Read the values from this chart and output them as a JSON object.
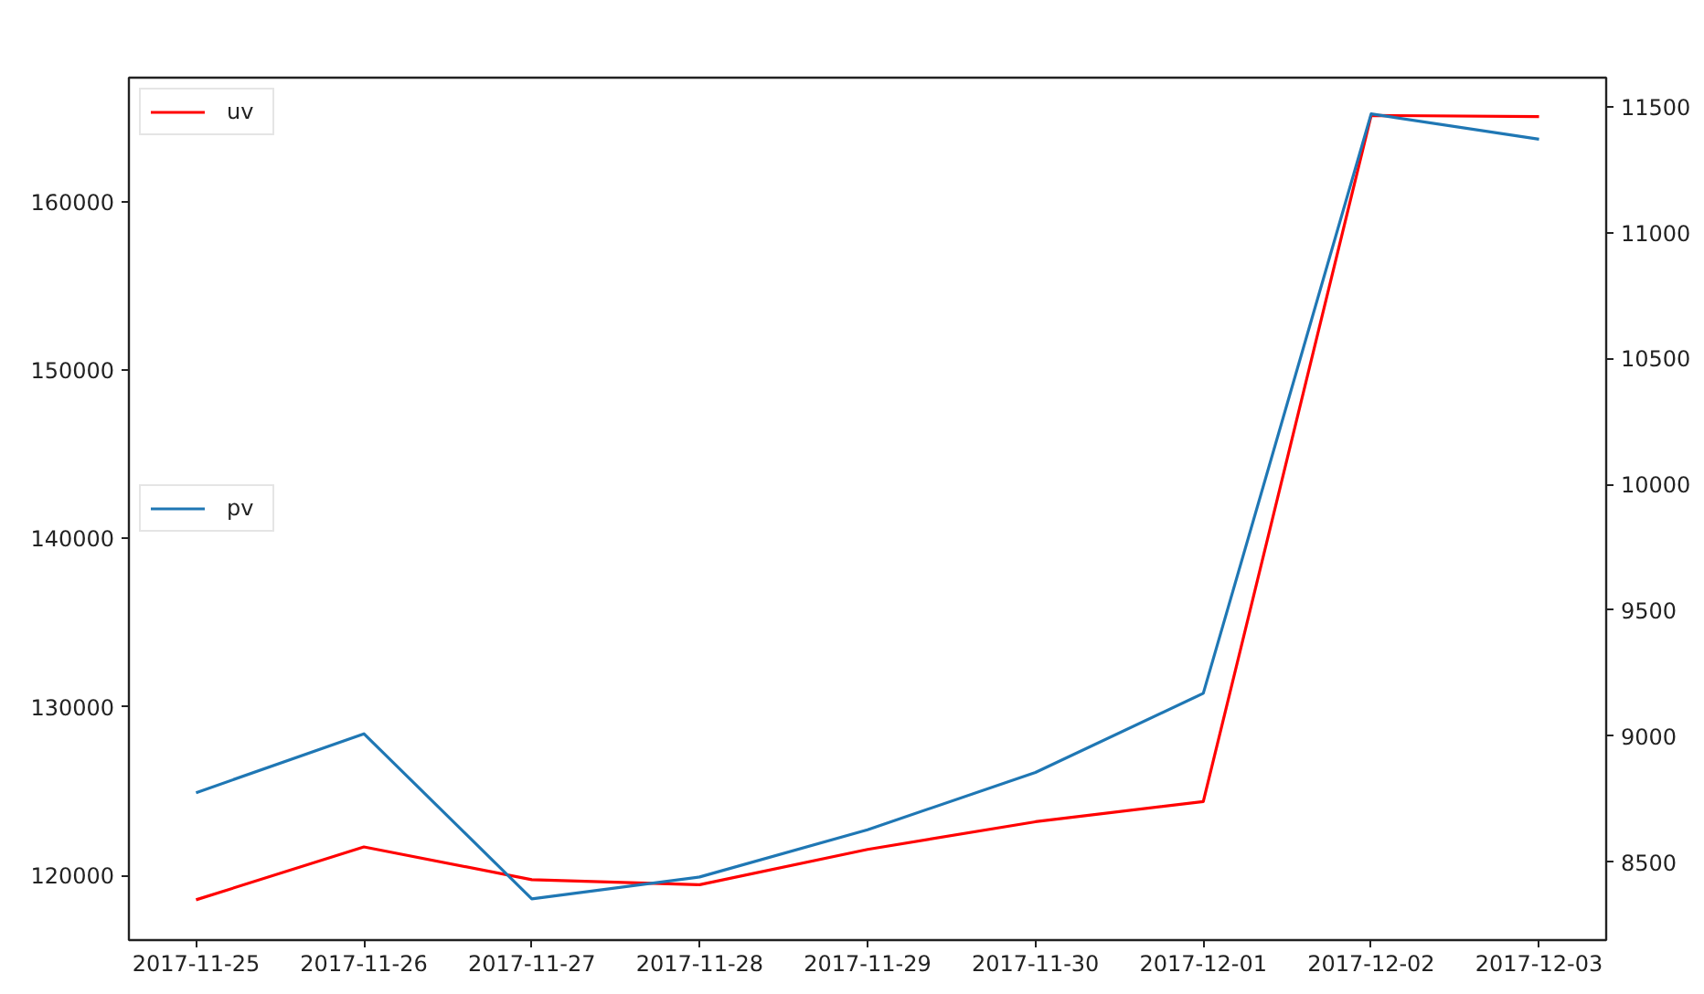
{
  "chart_data": {
    "type": "line",
    "categories": [
      "2017-11-25",
      "2017-11-26",
      "2017-11-27",
      "2017-11-28",
      "2017-11-29",
      "2017-11-30",
      "2017-12-01",
      "2017-12-02",
      "2017-12-03"
    ],
    "series": [
      {
        "name": "uv",
        "color": "#ff0000",
        "axis": "y2",
        "values": [
          8350,
          8560,
          8430,
          8410,
          8550,
          8660,
          8740,
          11465,
          11460
        ]
      },
      {
        "name": "pv",
        "color": "#1f77b4",
        "values": [
          124900,
          128400,
          118600,
          119900,
          122700,
          126100,
          130800,
          165200,
          163700
        ]
      }
    ],
    "ylim": [
      116150,
      167350
    ],
    "yticks": [
      120000,
      130000,
      140000,
      150000,
      160000
    ],
    "y2lim": [
      8190,
      11615
    ],
    "y2ticks": [
      8500,
      9000,
      9500,
      10000,
      10500,
      11000,
      11500
    ],
    "legend": "left"
  }
}
